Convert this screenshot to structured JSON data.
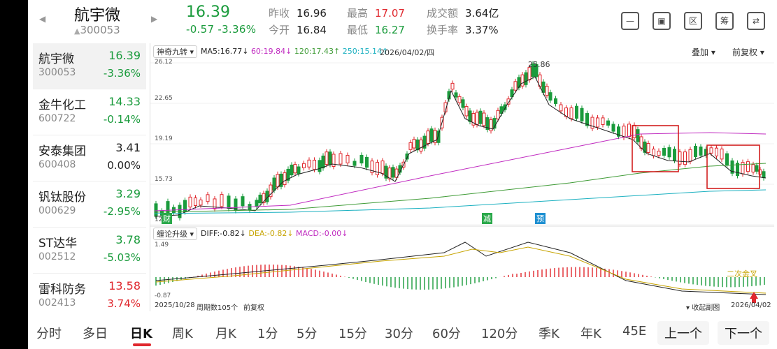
{
  "header": {
    "name": "航宇微",
    "code": "300053",
    "price": "16.39",
    "change": "-0.57  -3.36%",
    "stats": [
      {
        "label": "昨收",
        "value": "16.96"
      },
      {
        "label": "今开",
        "value": "16.84"
      },
      {
        "label": "最高",
        "value": "17.07"
      },
      {
        "label": "最低",
        "value": "16.27"
      },
      {
        "label": "成交额",
        "value": "3.64亿"
      },
      {
        "label": "换手率",
        "value": "3.37%"
      }
    ],
    "icons": [
      {
        "name": "minus-box-icon",
        "glyph": "—"
      },
      {
        "name": "screen-icon",
        "glyph": "▣"
      },
      {
        "name": "region-icon",
        "glyph": "区"
      },
      {
        "name": "chips-icon",
        "glyph": "筹"
      },
      {
        "name": "switch-icon",
        "glyph": "⇄"
      }
    ]
  },
  "watchlist": [
    {
      "name": "航宇微",
      "code": "300053",
      "price": "16.39",
      "pct": "-3.36%",
      "dir": "down",
      "selected": true
    },
    {
      "name": "金牛化工",
      "code": "600722",
      "price": "14.33",
      "pct": "-0.14%",
      "dir": "down"
    },
    {
      "name": "安泰集团",
      "code": "600408",
      "price": "3.41",
      "pct": "0.00%",
      "dir": "flat"
    },
    {
      "name": "钒钛股份",
      "code": "000629",
      "price": "3.29",
      "pct": "-2.95%",
      "dir": "down"
    },
    {
      "name": "ST达华",
      "code": "002512",
      "price": "3.78",
      "pct": "-5.03%",
      "dir": "down"
    },
    {
      "name": "雷科防务",
      "code": "002413",
      "price": "13.58",
      "pct": "3.74%",
      "dir": "up"
    }
  ],
  "chart": {
    "indicator_name": "神奇九转",
    "ma_legend": [
      {
        "text": "MA5:16.77↓",
        "color": "#222222"
      },
      {
        "text": "60:19.84↓",
        "color": "#c02bc0"
      },
      {
        "text": "120:17.43↑",
        "color": "#3f9b36"
      },
      {
        "text": "250:15.14↑",
        "color": "#1ab0c0"
      }
    ],
    "date": "2026/04/02/四",
    "overlay_label": "叠加",
    "adjust_label": "前复权",
    "price_ticks": [
      "26.12",
      "22.65",
      "19.19",
      "15.73",
      "12."
    ],
    "high_label": "25.86",
    "markers": [
      "财",
      "减",
      "预"
    ],
    "sub_indicator_name": "缠论升级",
    "macd_legend": [
      {
        "text": "DIFF:-0.82↓",
        "color": "#222222"
      },
      {
        "text": "DEA:-0.82↓",
        "color": "#c7a400"
      },
      {
        "text": "MACD:-0.00↓",
        "color": "#c02bc0"
      }
    ],
    "macd_ticks": [
      "1.49",
      "-0.87"
    ],
    "macd_note": "二次金叉",
    "start_date": "2025/10/28",
    "period_count": "周期数105个",
    "adjust_footer": "前复权",
    "collapse_label": "收起副图",
    "end_date": "2026/04/02"
  },
  "tabs": [
    "分时",
    "多日",
    "日K",
    "周K",
    "月K",
    "1分",
    "5分",
    "15分",
    "30分",
    "60分",
    "120分",
    "季K",
    "年K",
    "45E"
  ],
  "active_tab": "日K",
  "nav": {
    "prev": "上一个",
    "next": "下一个"
  },
  "colors": {
    "up": "#e0282e",
    "down": "#1a9b3c"
  }
}
